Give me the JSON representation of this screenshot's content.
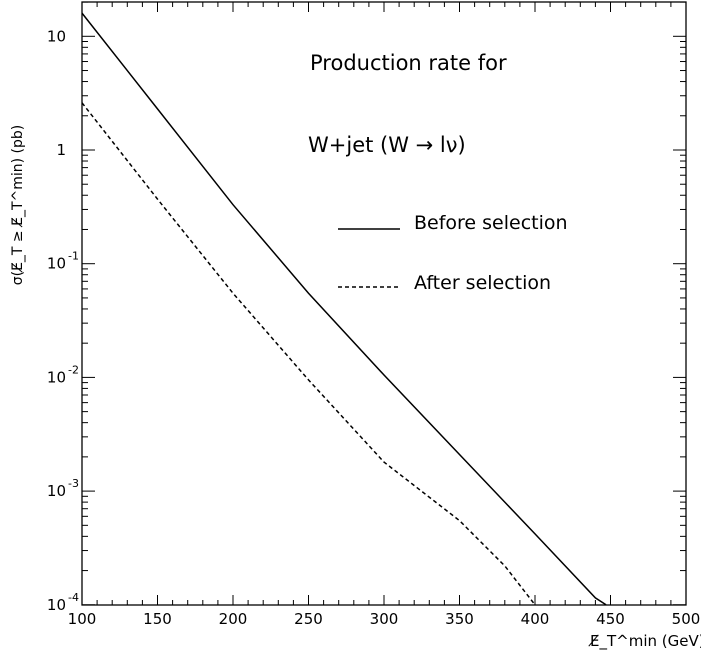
{
  "chart_data": {
    "type": "line",
    "title": "",
    "annotations": [
      "Production rate for",
      "W+jet (W → lν)"
    ],
    "xlabel": "E̸_T^min (GeV)",
    "ylabel": "σ(E̸_T ≥ E̸_T^min) (pb)",
    "xlim": [
      100,
      500
    ],
    "ylim": [
      0.0001,
      20
    ],
    "yscale": "log",
    "x_ticks": [
      100,
      150,
      200,
      250,
      300,
      350,
      400,
      450,
      500
    ],
    "y_ticks": [
      {
        "value": 10,
        "base": "10",
        "exp": ""
      },
      {
        "value": 1,
        "base": "1",
        "exp": ""
      },
      {
        "value": 0.1,
        "base": "10",
        "exp": "-1"
      },
      {
        "value": 0.01,
        "base": "10",
        "exp": "-2"
      },
      {
        "value": 0.001,
        "base": "10",
        "exp": "-3"
      },
      {
        "value": 0.0001,
        "base": "10",
        "exp": "-4"
      }
    ],
    "grid": false,
    "legend_position": "right-middle",
    "series": [
      {
        "name": "Before selection",
        "style": "solid",
        "x": [
          100,
          150,
          200,
          250,
          300,
          350,
          400,
          440,
          447
        ],
        "y": [
          16,
          2.3,
          0.33,
          0.055,
          0.0105,
          0.0021,
          0.00042,
          0.000115,
          0.0001
        ]
      },
      {
        "name": "After selection",
        "style": "dashed",
        "x": [
          100,
          150,
          200,
          250,
          300,
          350,
          380,
          400
        ],
        "y": [
          2.6,
          0.37,
          0.055,
          0.0095,
          0.0018,
          0.00055,
          0.00022,
          0.0001
        ]
      }
    ]
  }
}
